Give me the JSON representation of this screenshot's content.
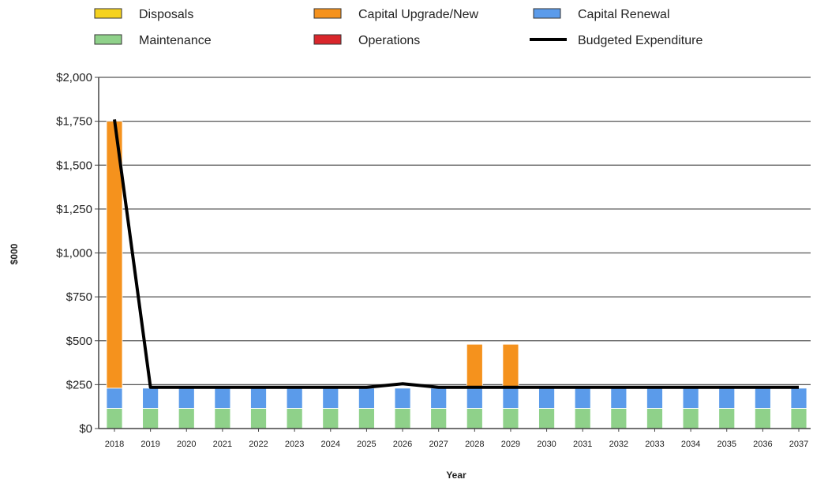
{
  "chart_data": {
    "type": "bar",
    "stacked": true,
    "xlabel": "Year",
    "ylabel": "$000",
    "ylim": [
      0,
      2000
    ],
    "yticks": [
      0,
      250,
      500,
      750,
      1000,
      1250,
      1500,
      1750,
      2000
    ],
    "ytick_labels": [
      "$0",
      "$250",
      "$500",
      "$750",
      "$1,000",
      "$1,250",
      "$1,500",
      "$1,750",
      "$2,000"
    ],
    "grid": true,
    "legend_position": "top",
    "categories": [
      "2018",
      "2019",
      "2020",
      "2021",
      "2022",
      "2023",
      "2024",
      "2025",
      "2026",
      "2027",
      "2028",
      "2029",
      "2030",
      "2031",
      "2032",
      "2033",
      "2034",
      "2035",
      "2036",
      "2037"
    ],
    "series": [
      {
        "name": "Disposals",
        "color": "#f5d21f",
        "values": [
          0,
          0,
          0,
          0,
          0,
          0,
          0,
          0,
          0,
          0,
          0,
          0,
          0,
          0,
          0,
          0,
          0,
          0,
          0,
          0
        ]
      },
      {
        "name": "Capital Upgrade/New",
        "color": "#f5921d",
        "values": [
          1520,
          0,
          0,
          0,
          0,
          0,
          0,
          0,
          0,
          0,
          250,
          250,
          0,
          0,
          0,
          0,
          0,
          0,
          0,
          0
        ]
      },
      {
        "name": "Capital Renewal",
        "color": "#5b9bea",
        "values": [
          115,
          115,
          115,
          115,
          115,
          115,
          115,
          115,
          115,
          115,
          115,
          115,
          115,
          115,
          115,
          115,
          115,
          115,
          115,
          115
        ]
      },
      {
        "name": "Maintenance",
        "color": "#8fd18a",
        "values": [
          115,
          115,
          115,
          115,
          115,
          115,
          115,
          115,
          115,
          115,
          115,
          115,
          115,
          115,
          115,
          115,
          115,
          115,
          115,
          115
        ]
      },
      {
        "name": "Operations",
        "color": "#d9262b",
        "values": [
          0,
          0,
          0,
          0,
          0,
          0,
          0,
          0,
          0,
          0,
          0,
          0,
          0,
          0,
          0,
          0,
          0,
          0,
          0,
          0
        ]
      }
    ],
    "line_series": {
      "name": "Budgeted Expenditure",
      "color": "#000000",
      "values": [
        1760,
        235,
        235,
        235,
        235,
        235,
        235,
        235,
        255,
        235,
        235,
        235,
        235,
        235,
        235,
        235,
        235,
        235,
        235,
        235
      ]
    },
    "legend_order": [
      "Disposals",
      "Capital Upgrade/New",
      "Capital Renewal",
      "Maintenance",
      "Operations",
      "Budgeted Expenditure"
    ]
  }
}
